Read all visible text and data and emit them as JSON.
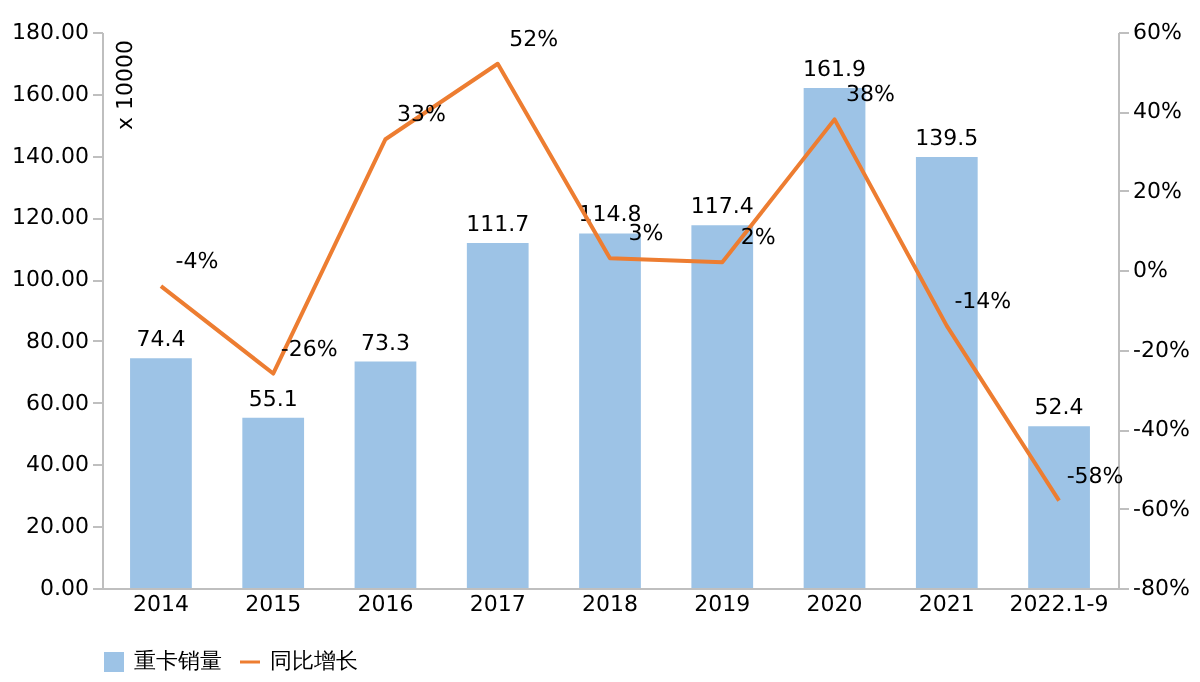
{
  "chart_data": {
    "type": "bar",
    "categories": [
      "2014",
      "2015",
      "2016",
      "2017",
      "2018",
      "2019",
      "2020",
      "2021",
      "2022.1-9"
    ],
    "series": [
      {
        "name": "重卡销量",
        "color": "#9dc3e6",
        "values": [
          74.4,
          55.1,
          73.3,
          111.7,
          114.8,
          117.4,
          161.9,
          139.5,
          52.4
        ],
        "value_labels": [
          "74.4",
          "55.1",
          "73.3",
          "111.7",
          "114.8",
          "117.4",
          "161.9",
          "139.5",
          "52.4"
        ]
      },
      {
        "name": "同比增长",
        "type": "line",
        "axis": "y2",
        "color": "#ed7d31",
        "values": [
          -4,
          -26,
          33,
          52,
          3,
          2,
          38,
          -14,
          -58
        ],
        "value_labels": [
          "-4%",
          "-26%",
          "33%",
          "52%",
          "3%",
          "2%",
          "38%",
          "-14%",
          "-58%"
        ]
      }
    ],
    "ylim": [
      0,
      180
    ],
    "yticks": [
      {
        "value": 0,
        "label": "0.00"
      },
      {
        "value": 20,
        "label": "20.00"
      },
      {
        "value": 40,
        "label": "40.00"
      },
      {
        "value": 60,
        "label": "60.00"
      },
      {
        "value": 80,
        "label": "80.00"
      },
      {
        "value": 100,
        "label": "100.00"
      },
      {
        "value": 120,
        "label": "120.00"
      },
      {
        "value": 140,
        "label": "140.00"
      },
      {
        "value": 160,
        "label": "160.00"
      },
      {
        "value": 180,
        "label": "180.00"
      }
    ],
    "y2lim": [
      -80,
      60
    ],
    "y2ticks": [
      {
        "value": -80,
        "label": "-80%"
      },
      {
        "value": -60,
        "label": "-60%"
      },
      {
        "value": -40,
        "label": "-40%"
      },
      {
        "value": -20,
        "label": "-20%"
      },
      {
        "value": 0,
        "label": "0%"
      },
      {
        "value": 20,
        "label": "20%"
      },
      {
        "value": 40,
        "label": "40%"
      },
      {
        "value": 60,
        "label": "60%"
      }
    ],
    "annotations": [
      "x 10000"
    ],
    "legend": "bottom",
    "grid": false,
    "marker": "none",
    "line_style": "solid"
  }
}
